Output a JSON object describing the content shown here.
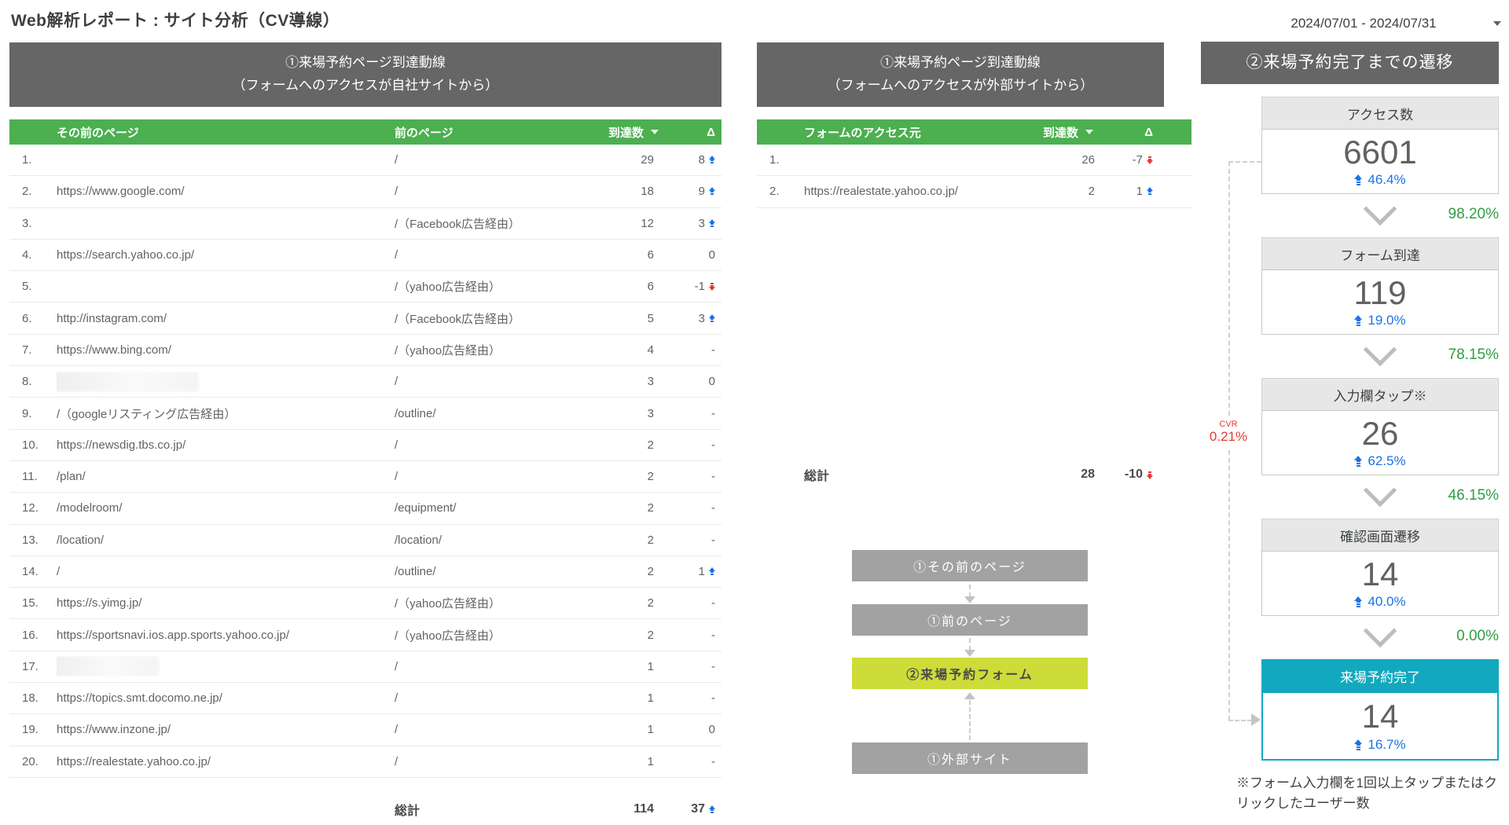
{
  "page": {
    "title": "Web解析レポート : サイト分析（CV導線）",
    "date_range": "2024/07/01 - 2024/07/31"
  },
  "colors": {
    "panel_header_gray": "#666666",
    "table_header_green": "#4CAF50",
    "flow_box_gray": "#A2A2A2",
    "flow_box_lime": "#CDDC39",
    "funnel_teal": "#12A9BF",
    "delta_up_blue": "#1A73E8",
    "delta_down_red": "#E53935",
    "rate_green": "#2E9E44",
    "cvr_red": "#E53935"
  },
  "internal_table": {
    "title_line1": "①来場予約ページ到達動線",
    "title_line2": "（フォームへのアクセスが自社サイトから）",
    "col_headers": {
      "prev2": "その前のページ",
      "prev": "前のページ",
      "count": "到達数",
      "delta": "Δ"
    },
    "rows": [
      {
        "no": "1.",
        "prev2": "",
        "redacted": false,
        "prev": "/",
        "count": "29",
        "delta": "8",
        "dir": "up"
      },
      {
        "no": "2.",
        "prev2": "https://www.google.com/",
        "redacted": false,
        "prev": "/",
        "count": "18",
        "delta": "9",
        "dir": "up"
      },
      {
        "no": "3.",
        "prev2": "",
        "redacted": false,
        "prev": "/（Facebook広告経由）",
        "count": "12",
        "delta": "3",
        "dir": "up"
      },
      {
        "no": "4.",
        "prev2": "https://search.yahoo.co.jp/",
        "redacted": false,
        "prev": "/",
        "count": "6",
        "delta": "0",
        "dir": ""
      },
      {
        "no": "5.",
        "prev2": "",
        "redacted": false,
        "prev": "/（yahoo広告経由）",
        "count": "6",
        "delta": "-1",
        "dir": "down"
      },
      {
        "no": "6.",
        "prev2": "http://instagram.com/",
        "redacted": false,
        "prev": "/（Facebook広告経由）",
        "count": "5",
        "delta": "3",
        "dir": "up"
      },
      {
        "no": "7.",
        "prev2": "https://www.bing.com/",
        "redacted": false,
        "prev": "/（yahoo広告経由）",
        "count": "4",
        "delta": "-",
        "dir": ""
      },
      {
        "no": "8.",
        "prev2": "",
        "redacted": true,
        "redact_width": 200,
        "prev": "/",
        "count": "3",
        "delta": "0",
        "dir": ""
      },
      {
        "no": "9.",
        "prev2": "/（googleリスティング広告経由）",
        "redacted": false,
        "prev": "/outline/",
        "count": "3",
        "delta": "-",
        "dir": ""
      },
      {
        "no": "10.",
        "prev2": "https://newsdig.tbs.co.jp/",
        "redacted": false,
        "prev": "/",
        "count": "2",
        "delta": "-",
        "dir": ""
      },
      {
        "no": "11.",
        "prev2": "/plan/",
        "redacted": false,
        "prev": "/",
        "count": "2",
        "delta": "-",
        "dir": ""
      },
      {
        "no": "12.",
        "prev2": "/modelroom/",
        "redacted": false,
        "prev": "/equipment/",
        "count": "2",
        "delta": "-",
        "dir": ""
      },
      {
        "no": "13.",
        "prev2": "/location/",
        "redacted": false,
        "prev": "/location/",
        "count": "2",
        "delta": "-",
        "dir": ""
      },
      {
        "no": "14.",
        "prev2": "/",
        "redacted": false,
        "prev": "/outline/",
        "count": "2",
        "delta": "1",
        "dir": "up"
      },
      {
        "no": "15.",
        "prev2": "https://s.yimg.jp/",
        "redacted": false,
        "prev": "/（yahoo広告経由）",
        "count": "2",
        "delta": "-",
        "dir": ""
      },
      {
        "no": "16.",
        "prev2": "https://sportsnavi.ios.app.sports.yahoo.co.jp/",
        "redacted": false,
        "prev": "/（yahoo広告経由）",
        "count": "2",
        "delta": "-",
        "dir": ""
      },
      {
        "no": "17.",
        "prev2": "",
        "redacted": true,
        "redact_width": 150,
        "prev": "/",
        "count": "1",
        "delta": "-",
        "dir": ""
      },
      {
        "no": "18.",
        "prev2": "https://topics.smt.docomo.ne.jp/",
        "redacted": false,
        "prev": "/",
        "count": "1",
        "delta": "-",
        "dir": ""
      },
      {
        "no": "19.",
        "prev2": "https://www.inzone.jp/",
        "redacted": false,
        "prev": "/",
        "count": "1",
        "delta": "0",
        "dir": ""
      },
      {
        "no": "20.",
        "prev2": "https://realestate.yahoo.co.jp/",
        "redacted": false,
        "prev": "/",
        "count": "1",
        "delta": "-",
        "dir": ""
      }
    ],
    "total": {
      "label": "総計",
      "count": "114",
      "delta": "37",
      "dir": "up"
    }
  },
  "external_table": {
    "title_line1": "①来場予約ページ到達動線",
    "title_line2": "（フォームへのアクセスが外部サイトから）",
    "col_headers": {
      "source": "フォームのアクセス元",
      "count": "到達数",
      "delta": "Δ"
    },
    "rows": [
      {
        "no": "1.",
        "source": "",
        "count": "26",
        "delta": "-7",
        "dir": "down"
      },
      {
        "no": "2.",
        "source": "https://realestate.yahoo.co.jp/",
        "count": "2",
        "delta": "1",
        "dir": "up"
      }
    ],
    "total": {
      "label": "総計",
      "count": "28",
      "delta": "-10",
      "dir": "down"
    }
  },
  "flow": {
    "steps": [
      {
        "label": "①その前のページ",
        "type": "gray"
      },
      {
        "label": "①前のページ",
        "type": "gray"
      },
      {
        "label": "②来場予約フォーム",
        "type": "lime"
      },
      {
        "label": "①外部サイト",
        "type": "gray"
      }
    ]
  },
  "funnel": {
    "title": "②来場予約完了までの遷移",
    "steps": [
      {
        "label": "アクセス数",
        "value": "6601",
        "delta": "46.4%",
        "rate_to_next": "98.20%",
        "highlight": false
      },
      {
        "label": "フォーム到達",
        "value": "119",
        "delta": "19.0%",
        "rate_to_next": "78.15%",
        "highlight": false
      },
      {
        "label": "入力欄タップ※",
        "value": "26",
        "delta": "62.5%",
        "rate_to_next": "46.15%",
        "highlight": false
      },
      {
        "label": "確認画面遷移",
        "value": "14",
        "delta": "40.0%",
        "rate_to_next": "0.00%",
        "highlight": false
      },
      {
        "label": "来場予約完了",
        "value": "14",
        "delta": "16.7%",
        "rate_to_next": null,
        "highlight": true
      }
    ],
    "cvr": {
      "label": "CVR",
      "value": "0.21%"
    },
    "footnote": "※フォーム入力欄を1回以上タップまたはクリックしたユーザー数"
  }
}
